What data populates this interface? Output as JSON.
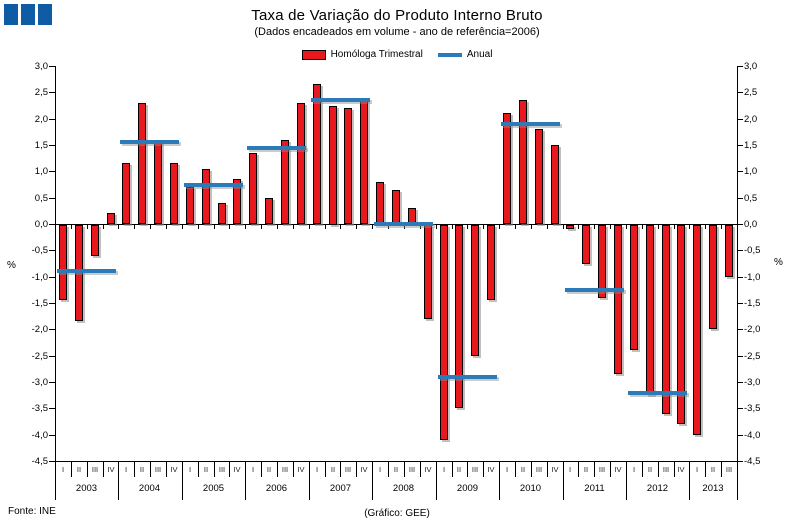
{
  "title": "Taxa de Variação do Produto Interno Bruto",
  "subtitle": "(Dados encadeados em volume - ano de referência=2006)",
  "legend": {
    "bar_label": "Homóloga Trimestral",
    "line_label": "Anual"
  },
  "axis": {
    "unit": "%",
    "ymax": 3.0,
    "ymin": -4.5,
    "ystep": 0.5,
    "y_tick_labels": [
      "3,0",
      "2,5",
      "2,0",
      "1,5",
      "1,0",
      "0,5",
      "0,0",
      "-0,5",
      "-1,0",
      "-1,5",
      "-2,0",
      "-2,5",
      "-3,0",
      "-3,5",
      "-4,0",
      "-4,5"
    ]
  },
  "footer": {
    "source": "Fonte:  INE",
    "credit": "(Gráfico:  GEE)"
  },
  "colors": {
    "bar": "#E8191E",
    "bar_border": "#000000",
    "line": "#2C7AB8",
    "logo": "#0F5BA4"
  },
  "chart_data": {
    "type": "bar",
    "title": "Taxa de Variação do Produto Interno Bruto",
    "subtitle": "(Dados encadeados em volume - ano de referência=2006)",
    "ylim": [
      -4.5,
      3.0
    ],
    "grid": false,
    "legend_position": "top",
    "series_info": [
      {
        "name": "Homóloga Trimestral",
        "type": "bar",
        "color": "#E8191E"
      },
      {
        "name": "Anual",
        "type": "line",
        "color": "#2C7AB8"
      }
    ],
    "years": [
      {
        "year": "2003",
        "quarters": [
          "I",
          "II",
          "III",
          "IV"
        ],
        "homologa_trimestral": [
          -1.45,
          -1.85,
          -0.6,
          0.2
        ],
        "anual": -0.9
      },
      {
        "year": "2004",
        "quarters": [
          "I",
          "II",
          "III",
          "IV"
        ],
        "homologa_trimestral": [
          1.15,
          2.3,
          1.6,
          1.15
        ],
        "anual": 1.55
      },
      {
        "year": "2005",
        "quarters": [
          "I",
          "II",
          "III",
          "IV"
        ],
        "homologa_trimestral": [
          0.7,
          1.05,
          0.4,
          0.85
        ],
        "anual": 0.75
      },
      {
        "year": "2006",
        "quarters": [
          "I",
          "II",
          "III",
          "IV"
        ],
        "homologa_trimestral": [
          1.35,
          0.5,
          1.6,
          2.3
        ],
        "anual": 1.45
      },
      {
        "year": "2007",
        "quarters": [
          "I",
          "II",
          "III",
          "IV"
        ],
        "homologa_trimestral": [
          2.65,
          2.25,
          2.2,
          2.35
        ],
        "anual": 2.35
      },
      {
        "year": "2008",
        "quarters": [
          "I",
          "II",
          "III",
          "IV"
        ],
        "homologa_trimestral": [
          0.8,
          0.65,
          0.3,
          -1.8
        ],
        "anual": 0.0
      },
      {
        "year": "2009",
        "quarters": [
          "I",
          "II",
          "III",
          "IV"
        ],
        "homologa_trimestral": [
          -4.1,
          -3.5,
          -2.5,
          -1.45
        ],
        "anual": -2.9
      },
      {
        "year": "2010",
        "quarters": [
          "I",
          "II",
          "III",
          "IV"
        ],
        "homologa_trimestral": [
          2.1,
          2.35,
          1.8,
          1.5
        ],
        "anual": 1.9
      },
      {
        "year": "2011",
        "quarters": [
          "I",
          "II",
          "III",
          "IV"
        ],
        "homologa_trimestral": [
          -0.1,
          -0.75,
          -1.4,
          -2.85
        ],
        "anual": -1.25
      },
      {
        "year": "2012",
        "quarters": [
          "I",
          "II",
          "III",
          "IV"
        ],
        "homologa_trimestral": [
          -2.4,
          -3.25,
          -3.6,
          -3.8
        ],
        "anual": -3.2
      },
      {
        "year": "2013",
        "quarters": [
          "I",
          "II",
          "III"
        ],
        "homologa_trimestral": [
          -4.0,
          -2.0,
          -1.0
        ],
        "anual": null
      }
    ]
  }
}
